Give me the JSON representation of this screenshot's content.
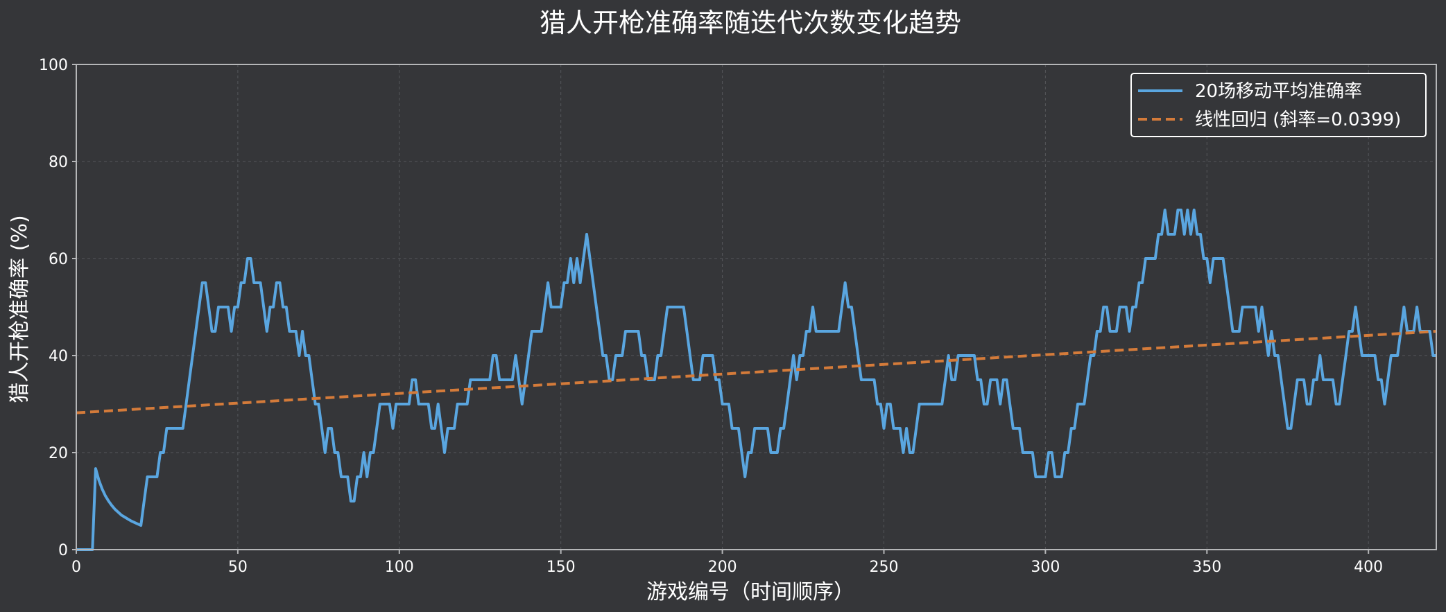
{
  "chart_data": {
    "type": "line",
    "title": "猎人开枪准确率随迭代次数变化趋势",
    "xlabel": "游戏编号（时间顺序）",
    "ylabel": "猎人开枪准确率 (%)",
    "xlim": [
      0,
      421
    ],
    "ylim": [
      0,
      100
    ],
    "xticks": [
      0,
      50,
      100,
      150,
      200,
      250,
      300,
      350,
      400
    ],
    "yticks": [
      0,
      20,
      40,
      60,
      80,
      100
    ],
    "grid": true,
    "legend_position": "top-right",
    "colors": {
      "background": "#353639",
      "moving_average": "#5aa6e0",
      "regression": "#d47b3a",
      "grid": "#55575b",
      "axis": "#b5b6b8"
    },
    "series": [
      {
        "name": "20场移动平均准确率",
        "style": "solid",
        "x": [
          0,
          5,
          6,
          7,
          8,
          9,
          10,
          11,
          12,
          13,
          14,
          15,
          16,
          17,
          18,
          19,
          20,
          21,
          22,
          23,
          24,
          25,
          26,
          27,
          28,
          29,
          30,
          31,
          32,
          33,
          34,
          35,
          36,
          37,
          38,
          39,
          40,
          41,
          42,
          43,
          44,
          45,
          46,
          47,
          48,
          49,
          50,
          51,
          52,
          53,
          54,
          55,
          56,
          57,
          58,
          59,
          60,
          61,
          62,
          63,
          64,
          65,
          66,
          67,
          68,
          69,
          70,
          71,
          72,
          73,
          74,
          75,
          76,
          77,
          78,
          79,
          80,
          81,
          82,
          83,
          84,
          85,
          86,
          87,
          88,
          89,
          90,
          91,
          92,
          93,
          94,
          95,
          96,
          97,
          98,
          99,
          100,
          101,
          102,
          103,
          104,
          105,
          106,
          107,
          108,
          109,
          110,
          111,
          112,
          113,
          114,
          115,
          116,
          117,
          118,
          119,
          120,
          121,
          122,
          123,
          124,
          125,
          126,
          127,
          128,
          129,
          130,
          131,
          132,
          133,
          134,
          135,
          136,
          137,
          138,
          139,
          140,
          141,
          142,
          143,
          144,
          145,
          146,
          147,
          148,
          149,
          150,
          151,
          152,
          153,
          154,
          155,
          156,
          157,
          158,
          159,
          160,
          161,
          162,
          163,
          164,
          165,
          166,
          167,
          168,
          169,
          170,
          171,
          172,
          173,
          174,
          175,
          176,
          177,
          178,
          179,
          180,
          181,
          182,
          183,
          184,
          185,
          186,
          187,
          188,
          189,
          190,
          191,
          192,
          193,
          194,
          195,
          196,
          197,
          198,
          199,
          200,
          201,
          202,
          203,
          204,
          205,
          206,
          207,
          208,
          209,
          210,
          211,
          212,
          213,
          214,
          215,
          216,
          217,
          218,
          219,
          220,
          221,
          222,
          223,
          224,
          225,
          226,
          227,
          228,
          229,
          230,
          231,
          232,
          233,
          234,
          235,
          236,
          237,
          238,
          239,
          240,
          241,
          242,
          243,
          244,
          245,
          246,
          247,
          248,
          249,
          250,
          251,
          252,
          253,
          254,
          255,
          256,
          257,
          258,
          259,
          260,
          261,
          262,
          263,
          264,
          265,
          266,
          267,
          268,
          269,
          270,
          271,
          272,
          273,
          274,
          275,
          276,
          277,
          278,
          279,
          280,
          281,
          282,
          283,
          284,
          285,
          286,
          287,
          288,
          289,
          290,
          291,
          292,
          293,
          294,
          295,
          296,
          297,
          298,
          299,
          300,
          301,
          302,
          303,
          304,
          305,
          306,
          307,
          308,
          309,
          310,
          311,
          312,
          313,
          314,
          315,
          316,
          317,
          318,
          319,
          320,
          321,
          322,
          323,
          324,
          325,
          326,
          327,
          328,
          329,
          330,
          331,
          332,
          333,
          334,
          335,
          336,
          337,
          338,
          339,
          340,
          341,
          342,
          343,
          344,
          345,
          346,
          347,
          348,
          349,
          350,
          351,
          352,
          353,
          354,
          355,
          356,
          357,
          358,
          359,
          360,
          361,
          362,
          363,
          364,
          365,
          366,
          367,
          368,
          369,
          370,
          371,
          372,
          373,
          374,
          375,
          376,
          377,
          378,
          379,
          380,
          381,
          382,
          383,
          384,
          385,
          386,
          387,
          388,
          389,
          390,
          391,
          392,
          393,
          394,
          395,
          396,
          397,
          398,
          399,
          400,
          401,
          402,
          403,
          404,
          405,
          406,
          407,
          408,
          409,
          410,
          411,
          412,
          413,
          414,
          415,
          416,
          417,
          418,
          419,
          420,
          421
        ],
        "y": [
          0,
          0,
          16.7,
          14.3,
          12.5,
          11.1,
          10,
          9.1,
          8.3,
          7.7,
          7.1,
          6.7,
          6.3,
          5.9,
          5.6,
          5.3,
          5,
          10,
          15,
          15,
          15,
          15,
          20,
          20,
          25,
          25,
          25,
          25,
          25,
          25,
          30,
          35,
          40,
          45,
          50,
          55,
          55,
          50,
          45,
          45,
          50,
          50,
          50,
          50,
          45,
          50,
          50,
          55,
          55,
          60,
          60,
          55,
          55,
          55,
          50,
          45,
          50,
          50,
          55,
          55,
          50,
          50,
          45,
          45,
          45,
          40,
          45,
          40,
          40,
          35,
          30,
          30,
          25,
          20,
          25,
          25,
          20,
          20,
          15,
          15,
          15,
          10,
          10,
          15,
          15,
          20,
          15,
          20,
          20,
          25,
          30,
          30,
          30,
          30,
          25,
          30,
          30,
          30,
          30,
          30,
          35,
          35,
          30,
          30,
          30,
          30,
          25,
          25,
          30,
          25,
          20,
          25,
          25,
          25,
          30,
          30,
          30,
          30,
          35,
          35,
          35,
          35,
          35,
          35,
          35,
          40,
          40,
          35,
          35,
          35,
          35,
          35,
          40,
          35,
          30,
          35,
          40,
          45,
          45,
          45,
          45,
          50,
          55,
          50,
          50,
          50,
          50,
          55,
          55,
          60,
          55,
          60,
          55,
          60,
          65,
          60,
          55,
          50,
          45,
          40,
          40,
          35,
          35,
          40,
          40,
          40,
          45,
          45,
          45,
          45,
          45,
          40,
          40,
          35,
          35,
          35,
          40,
          40,
          45,
          50,
          50,
          50,
          50,
          50,
          50,
          45,
          40,
          35,
          35,
          35,
          40,
          40,
          40,
          40,
          35,
          35,
          30,
          30,
          30,
          25,
          25,
          25,
          20,
          15,
          20,
          20,
          25,
          25,
          25,
          25,
          25,
          20,
          20,
          20,
          25,
          25,
          30,
          35,
          40,
          35,
          40,
          40,
          45,
          45,
          50,
          45,
          45,
          45,
          45,
          45,
          45,
          45,
          45,
          50,
          55,
          50,
          50,
          45,
          40,
          35,
          35,
          35,
          35,
          35,
          30,
          30,
          25,
          30,
          30,
          25,
          25,
          25,
          20,
          25,
          20,
          20,
          25,
          30,
          30,
          30,
          30,
          30,
          30,
          30,
          30,
          35,
          40,
          35,
          35,
          40,
          40,
          40,
          40,
          40,
          40,
          35,
          35,
          30,
          30,
          35,
          35,
          35,
          30,
          35,
          35,
          30,
          25,
          25,
          25,
          20,
          20,
          20,
          20,
          15,
          15,
          15,
          15,
          20,
          20,
          15,
          15,
          15,
          20,
          20,
          25,
          25,
          30,
          30,
          30,
          35,
          40,
          40,
          45,
          45,
          50,
          50,
          45,
          45,
          45,
          50,
          50,
          50,
          45,
          50,
          50,
          55,
          55,
          60,
          60,
          60,
          60,
          65,
          65,
          70,
          65,
          65,
          65,
          70,
          70,
          65,
          70,
          65,
          70,
          65,
          65,
          60,
          60,
          55,
          60,
          60,
          60,
          60,
          55,
          50,
          45,
          45,
          45,
          50,
          50,
          50,
          50,
          50,
          45,
          50,
          45,
          40,
          45,
          40,
          40,
          35,
          30,
          25,
          25,
          30,
          35,
          35,
          35,
          30,
          30,
          35,
          35,
          40,
          35,
          35,
          35,
          35,
          30,
          30,
          35,
          40,
          45,
          45,
          50,
          45,
          40,
          40,
          40,
          40,
          40,
          35,
          35,
          30,
          35,
          40,
          40,
          40,
          45,
          50,
          45,
          45,
          45,
          50,
          45,
          45,
          45,
          45,
          40,
          40
        ]
      },
      {
        "name": "线性回归 (斜率=0.0399)",
        "style": "dashed",
        "x": [
          0,
          421
        ],
        "y": [
          28.2,
          45.0
        ]
      }
    ]
  }
}
